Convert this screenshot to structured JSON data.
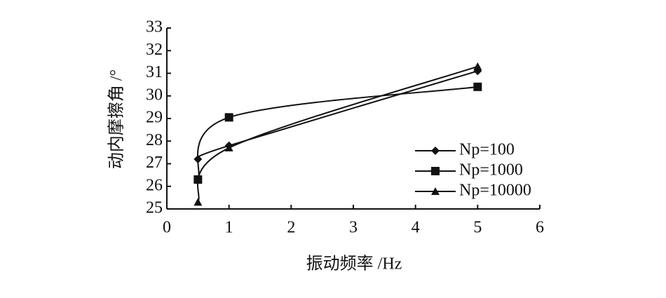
{
  "chart_data": {
    "type": "line",
    "x_label": "振动频率 /Hz",
    "y_label": "动内摩擦角 /°",
    "xlim": [
      0,
      6
    ],
    "xticks": [
      0,
      1,
      2,
      3,
      4,
      5,
      6
    ],
    "ylim": [
      25,
      33
    ],
    "yticks": [
      25,
      26,
      27,
      28,
      29,
      30,
      31,
      32,
      33
    ],
    "legend": "lower right",
    "series": [
      {
        "name": "Np=100",
        "color": "#111111",
        "marker": "diamond",
        "x": [
          0.5,
          1,
          5
        ],
        "values": [
          27.2,
          27.8,
          31.1
        ]
      },
      {
        "name": "Np=1000",
        "color": "#111111",
        "marker": "square",
        "x": [
          0.5,
          1,
          5
        ],
        "values": [
          26.3,
          29.05,
          30.4
        ]
      },
      {
        "name": "Np=10000",
        "color": "#111111",
        "marker": "triangle",
        "x": [
          0.5,
          1,
          5
        ],
        "values": [
          25.3,
          27.7,
          31.3
        ]
      }
    ]
  }
}
